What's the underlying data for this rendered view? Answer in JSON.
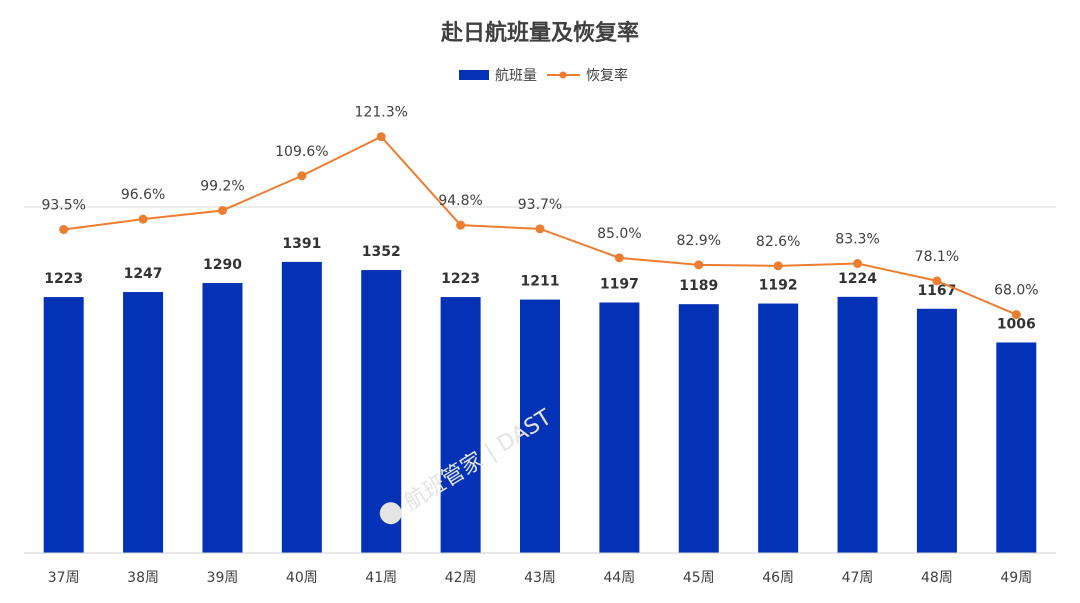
{
  "chart_data": {
    "type": "bar",
    "title": "赴日航班量及恢复率",
    "categories": [
      "37周",
      "38周",
      "39周",
      "40周",
      "41周",
      "42周",
      "43周",
      "44周",
      "45周",
      "46周",
      "47周",
      "48周",
      "49周"
    ],
    "series": [
      {
        "name": "航班量",
        "type": "bar",
        "color": "#0432b6",
        "values": [
          1223,
          1247,
          1290,
          1391,
          1352,
          1223,
          1211,
          1197,
          1189,
          1192,
          1224,
          1167,
          1006
        ],
        "labels": [
          "1223",
          "1247",
          "1290",
          "1391",
          "1352",
          "1223",
          "1211",
          "1197",
          "1189",
          "1192",
          "1224",
          "1167",
          "1006"
        ]
      },
      {
        "name": "恢复率",
        "type": "line",
        "color": "#ed7d31",
        "values": [
          93.5,
          96.6,
          99.2,
          109.6,
          121.3,
          94.8,
          93.7,
          85.0,
          82.9,
          82.6,
          83.3,
          78.1,
          68.0
        ],
        "labels": [
          "93.5%",
          "96.6%",
          "99.2%",
          "109.6%",
          "121.3%",
          "94.8%",
          "93.7%",
          "85.0%",
          "82.9%",
          "82.6%",
          "83.3%",
          "78.1%",
          "68.0%"
        ]
      }
    ],
    "xlabel": "",
    "ylabel": "",
    "ylim": [
      0,
      1500
    ],
    "y2lim": [
      0,
      180
    ],
    "legend": "top-center",
    "grid": false
  },
  "watermark": "航班管家 | DAST"
}
